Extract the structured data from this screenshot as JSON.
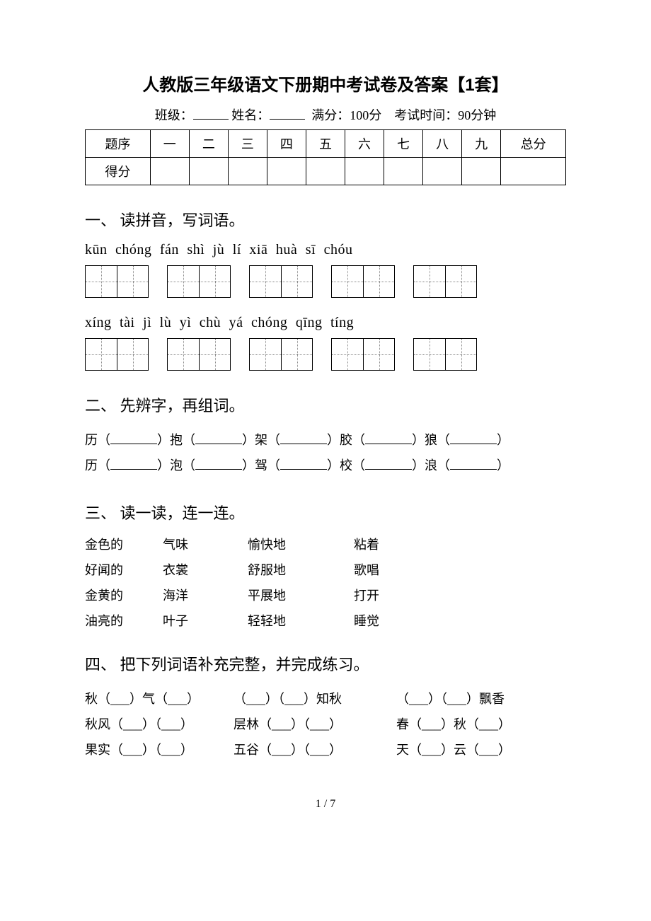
{
  "title": "人教版三年级语文下册期中考试卷及答案【1套】",
  "info": {
    "class_label": "班级：",
    "name_label": "姓名：",
    "full_label": "满分：",
    "full_value": "100分",
    "time_label": "考试时间：",
    "time_value": "90分钟"
  },
  "score_table": {
    "row1": [
      "题序",
      "一",
      "二",
      "三",
      "四",
      "五",
      "六",
      "七",
      "八",
      "九",
      "总分"
    ],
    "row2_label": "得分"
  },
  "q1": {
    "heading": "一、 读拼音，写词语。",
    "line1": "kūn chóng   fán shì    jù  lí    xiā  huà     sī  chóu",
    "line2": "xíng tài    jì   lù     yì  chù   yá chóng   qīng tíng"
  },
  "q2": {
    "heading": "二、 先辨字，再组词。",
    "row1": [
      "历",
      "抱",
      "架",
      "胶",
      "狼"
    ],
    "row2": [
      "历",
      "泡",
      "驾",
      "校",
      "浪"
    ]
  },
  "q3": {
    "heading": "三、 读一读，连一连。",
    "colA": [
      "金色的",
      "好闻的",
      "金黄的",
      "油亮的"
    ],
    "colB": [
      "气味",
      "衣裳",
      "海洋",
      "叶子"
    ],
    "colC": [
      "愉快地",
      "舒服地",
      "平展地",
      "轻轻地"
    ],
    "colD": [
      "粘着",
      "歌唱",
      "打开",
      "睡觉"
    ]
  },
  "q4": {
    "heading": "四、 把下列词语补充完整，并完成练习。",
    "rows": [
      {
        "a": "秋（___）气（___）",
        "b": "（___）（___）知秋",
        "c": "（___）（___）飘香"
      },
      {
        "a": "秋风（___）（___）",
        "b": "层林（___）（___）",
        "c": "春（___）秋（___）"
      },
      {
        "a": "果实（___）（___）",
        "b": "五谷（___）（___）",
        "c": "天（___）云（___）"
      }
    ]
  },
  "footer": "1 / 7"
}
